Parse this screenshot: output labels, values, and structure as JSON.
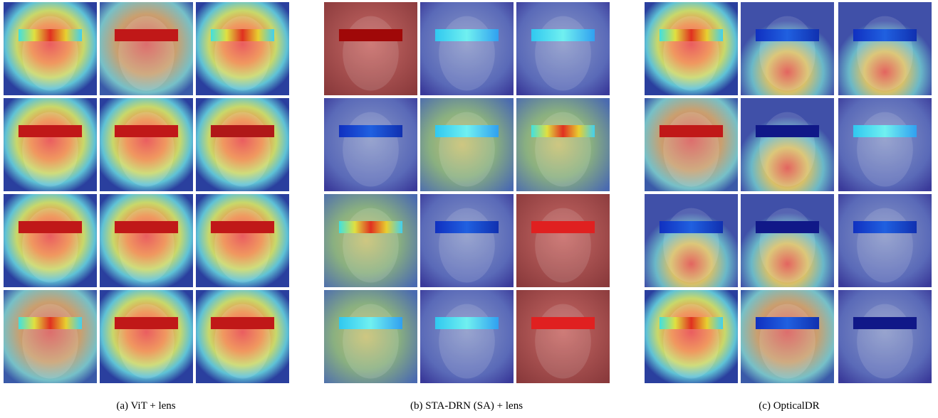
{
  "panels": [
    {
      "caption": "(a) ViT + lens"
    },
    {
      "caption": "(b) STA-DRN (SA) + lens"
    },
    {
      "caption": "(c) OpticalDR"
    }
  ]
}
